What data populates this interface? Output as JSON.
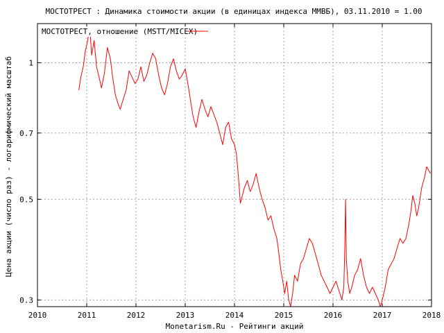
{
  "chart_data": {
    "type": "line",
    "title": "МОСТОТРЕСТ : Динамика стоимости акции (в единицах индекса ММВБ), 03.11.2010 = 1.00",
    "xlabel": "Monetarism.Ru - Рейтинги акций",
    "ylabel": "Цена акции (число раз) - логарифмический масштаб",
    "y_scale": "log",
    "xlim": [
      2010,
      2018
    ],
    "ylim": [
      0.29,
      1.22
    ],
    "x_ticks": [
      "2010",
      "2011",
      "2012",
      "2013",
      "2014",
      "2015",
      "2016",
      "2017",
      "2018"
    ],
    "y_ticks": [
      {
        "value": 0.3,
        "label": "0.3"
      },
      {
        "value": 0.5,
        "label": "0.5"
      },
      {
        "value": 0.7,
        "label": "0.7"
      },
      {
        "value": 1.0,
        "label": "1"
      }
    ],
    "grid": true,
    "legend_position": "top-left",
    "series": [
      {
        "name": "МОСТОТРЕСТ, отношение (MSTT/MICEX)",
        "color": "#ff0000",
        "points": [
          [
            2010.84,
            0.87
          ],
          [
            2010.88,
            0.93
          ],
          [
            2010.93,
            0.98
          ],
          [
            2010.97,
            1.06
          ],
          [
            2011.02,
            1.12
          ],
          [
            2011.06,
            1.2
          ],
          [
            2011.1,
            1.04
          ],
          [
            2011.15,
            1.12
          ],
          [
            2011.2,
            0.98
          ],
          [
            2011.25,
            0.93
          ],
          [
            2011.3,
            0.88
          ],
          [
            2011.36,
            0.95
          ],
          [
            2011.42,
            1.08
          ],
          [
            2011.48,
            1.02
          ],
          [
            2011.52,
            0.94
          ],
          [
            2011.58,
            0.85
          ],
          [
            2011.64,
            0.81
          ],
          [
            2011.68,
            0.79
          ],
          [
            2011.74,
            0.83
          ],
          [
            2011.8,
            0.87
          ],
          [
            2011.86,
            0.96
          ],
          [
            2011.92,
            0.93
          ],
          [
            2011.98,
            0.9
          ],
          [
            2012.04,
            0.92
          ],
          [
            2012.1,
            0.98
          ],
          [
            2012.16,
            0.91
          ],
          [
            2012.22,
            0.94
          ],
          [
            2012.28,
            1.0
          ],
          [
            2012.34,
            1.05
          ],
          [
            2012.4,
            1.02
          ],
          [
            2012.46,
            0.94
          ],
          [
            2012.52,
            0.88
          ],
          [
            2012.58,
            0.85
          ],
          [
            2012.64,
            0.9
          ],
          [
            2012.7,
            0.98
          ],
          [
            2012.76,
            1.02
          ],
          [
            2012.82,
            0.96
          ],
          [
            2012.88,
            0.92
          ],
          [
            2012.94,
            0.94
          ],
          [
            2013.0,
            0.97
          ],
          [
            2013.06,
            0.89
          ],
          [
            2013.12,
            0.81
          ],
          [
            2013.16,
            0.76
          ],
          [
            2013.22,
            0.72
          ],
          [
            2013.28,
            0.78
          ],
          [
            2013.34,
            0.83
          ],
          [
            2013.4,
            0.79
          ],
          [
            2013.46,
            0.76
          ],
          [
            2013.52,
            0.8
          ],
          [
            2013.58,
            0.77
          ],
          [
            2013.64,
            0.74
          ],
          [
            2013.7,
            0.7
          ],
          [
            2013.76,
            0.66
          ],
          [
            2013.82,
            0.72
          ],
          [
            2013.88,
            0.74
          ],
          [
            2013.94,
            0.68
          ],
          [
            2014.0,
            0.66
          ],
          [
            2014.04,
            0.63
          ],
          [
            2014.08,
            0.56
          ],
          [
            2014.12,
            0.49
          ],
          [
            2014.16,
            0.51
          ],
          [
            2014.2,
            0.53
          ],
          [
            2014.26,
            0.55
          ],
          [
            2014.32,
            0.52
          ],
          [
            2014.38,
            0.54
          ],
          [
            2014.44,
            0.57
          ],
          [
            2014.5,
            0.53
          ],
          [
            2014.56,
            0.5
          ],
          [
            2014.62,
            0.48
          ],
          [
            2014.68,
            0.45
          ],
          [
            2014.74,
            0.46
          ],
          [
            2014.8,
            0.43
          ],
          [
            2014.86,
            0.41
          ],
          [
            2014.9,
            0.38
          ],
          [
            2014.94,
            0.35
          ],
          [
            2014.98,
            0.33
          ],
          [
            2015.02,
            0.31
          ],
          [
            2015.06,
            0.33
          ],
          [
            2015.1,
            0.3
          ],
          [
            2015.14,
            0.29
          ],
          [
            2015.18,
            0.31
          ],
          [
            2015.22,
            0.34
          ],
          [
            2015.28,
            0.33
          ],
          [
            2015.34,
            0.36
          ],
          [
            2015.4,
            0.37
          ],
          [
            2015.46,
            0.39
          ],
          [
            2015.52,
            0.41
          ],
          [
            2015.58,
            0.4
          ],
          [
            2015.64,
            0.38
          ],
          [
            2015.7,
            0.36
          ],
          [
            2015.76,
            0.34
          ],
          [
            2015.82,
            0.33
          ],
          [
            2015.88,
            0.32
          ],
          [
            2015.94,
            0.31
          ],
          [
            2016.0,
            0.32
          ],
          [
            2016.06,
            0.33
          ],
          [
            2016.1,
            0.32
          ],
          [
            2016.14,
            0.31
          ],
          [
            2016.18,
            0.3
          ],
          [
            2016.22,
            0.32
          ],
          [
            2016.24,
            0.39
          ],
          [
            2016.255,
            0.5
          ],
          [
            2016.27,
            0.37
          ],
          [
            2016.3,
            0.33
          ],
          [
            2016.34,
            0.31
          ],
          [
            2016.38,
            0.32
          ],
          [
            2016.44,
            0.34
          ],
          [
            2016.5,
            0.35
          ],
          [
            2016.56,
            0.37
          ],
          [
            2016.62,
            0.34
          ],
          [
            2016.68,
            0.32
          ],
          [
            2016.74,
            0.31
          ],
          [
            2016.8,
            0.32
          ],
          [
            2016.86,
            0.31
          ],
          [
            2016.92,
            0.3
          ],
          [
            2016.96,
            0.29
          ],
          [
            2017.0,
            0.3
          ],
          [
            2017.06,
            0.32
          ],
          [
            2017.12,
            0.35
          ],
          [
            2017.18,
            0.36
          ],
          [
            2017.24,
            0.37
          ],
          [
            2017.3,
            0.39
          ],
          [
            2017.36,
            0.41
          ],
          [
            2017.42,
            0.4
          ],
          [
            2017.48,
            0.41
          ],
          [
            2017.54,
            0.44
          ],
          [
            2017.58,
            0.47
          ],
          [
            2017.62,
            0.51
          ],
          [
            2017.66,
            0.49
          ],
          [
            2017.7,
            0.46
          ],
          [
            2017.74,
            0.48
          ],
          [
            2017.8,
            0.53
          ],
          [
            2017.86,
            0.56
          ],
          [
            2017.9,
            0.59
          ],
          [
            2017.94,
            0.58
          ],
          [
            2017.98,
            0.57
          ]
        ]
      }
    ],
    "axis_color": "#000000",
    "grid_color": "#a0a0a0"
  }
}
